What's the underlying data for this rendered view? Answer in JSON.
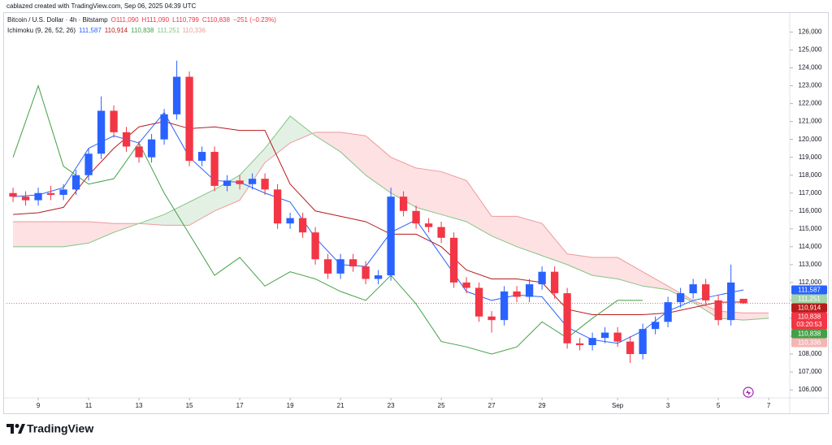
{
  "credit": "cablazed created with TradingView.com, Sep 06, 2025 04:39 UTC",
  "logo": "TradingView",
  "chart_data": {
    "type": "candlestick",
    "symbol": "Bitcoin / U.S. Dollar · 4h · Bitstamp",
    "ohlc_text": [
      "O111,090",
      "H111,090",
      "L110,799",
      "C110,838",
      "−251 (−0.23%)"
    ],
    "indicator": "Ichimoku (9, 26, 52, 26)",
    "indicator_values": [
      {
        "label": "111,587",
        "color": "#2962ff"
      },
      {
        "label": "110,914",
        "color": "#b71c1c"
      },
      {
        "label": "110,838",
        "color": "#43a047"
      },
      {
        "label": "111,251",
        "color": "#81c784"
      },
      {
        "label": "110,336",
        "color": "#ef9a9a"
      }
    ],
    "up_color": "#2962ff",
    "down_color": "#f23645",
    "x": [
      8,
      8.5,
      9,
      9.5,
      10,
      10.5,
      11,
      11.5,
      12,
      12.5,
      13,
      13.5,
      14,
      14.5,
      15,
      15.5,
      16,
      16.5,
      17,
      17.5,
      18,
      18.5,
      19,
      19.5,
      20,
      20.5,
      21,
      21.5,
      22,
      22.5,
      23,
      23.5,
      24,
      24.5,
      25,
      25.5,
      26,
      26.5,
      27,
      27.5,
      28,
      28.5,
      29,
      29.5,
      30,
      30.5,
      31,
      31.5,
      32,
      32.5,
      33,
      33.5,
      34,
      34.5,
      35,
      35.5,
      36,
      36.5,
      37
    ],
    "open": [
      117000,
      116800,
      116600,
      117000,
      116900,
      117200,
      118000,
      119200,
      121600,
      120400,
      119600,
      119000,
      120000,
      121400,
      123500,
      118800,
      119300,
      117400,
      117700,
      117500,
      117800,
      117200,
      115300,
      115600,
      114800,
      113300,
      112500,
      113300,
      112900,
      112200,
      112400,
      116800,
      116000,
      115300,
      115100,
      114500,
      112000,
      111700,
      110100,
      109900,
      111500,
      111200,
      111900,
      112600,
      111400,
      108600,
      108500,
      108900,
      109200,
      108700,
      108000,
      109400,
      109800,
      110900,
      111400,
      111900,
      111000,
      109900,
      111090
    ],
    "high": [
      117300,
      117100,
      117300,
      117400,
      117500,
      118300,
      119500,
      122400,
      121900,
      120700,
      119900,
      120300,
      121700,
      124400,
      123800,
      119600,
      119600,
      118000,
      118000,
      118100,
      118100,
      117500,
      115900,
      115900,
      115100,
      113600,
      113600,
      113600,
      113200,
      112700,
      117300,
      117100,
      116300,
      115600,
      115400,
      114800,
      112300,
      112000,
      110400,
      111800,
      111800,
      112200,
      112900,
      112900,
      111700,
      108900,
      109200,
      109500,
      109500,
      109000,
      109700,
      110100,
      111200,
      111700,
      112200,
      112200,
      111300,
      113000,
      111090
    ],
    "low": [
      116500,
      116300,
      116300,
      116600,
      116600,
      116900,
      117700,
      118900,
      120100,
      119300,
      118700,
      118700,
      119700,
      121100,
      118500,
      118500,
      117100,
      117100,
      117200,
      117200,
      116900,
      115000,
      115000,
      114500,
      113000,
      112200,
      112200,
      112600,
      111900,
      111900,
      112100,
      115700,
      115000,
      114800,
      114200,
      111700,
      111400,
      109800,
      109200,
      109600,
      110900,
      110900,
      111600,
      111100,
      108300,
      108200,
      108200,
      108600,
      108400,
      107500,
      107700,
      109100,
      109500,
      110600,
      111100,
      110700,
      109600,
      109600,
      110799
    ],
    "close": [
      116800,
      116600,
      117000,
      116900,
      117200,
      118000,
      119200,
      121600,
      120400,
      119600,
      119000,
      120000,
      121400,
      123500,
      118800,
      119300,
      117400,
      117700,
      117500,
      117800,
      117200,
      115300,
      115600,
      114800,
      113300,
      112500,
      113300,
      112900,
      112200,
      112400,
      116800,
      116000,
      115300,
      115100,
      114500,
      112000,
      111700,
      110100,
      109900,
      111500,
      111200,
      111900,
      112600,
      111400,
      108600,
      108500,
      108900,
      109200,
      108700,
      108000,
      109400,
      109800,
      110900,
      111400,
      111900,
      111000,
      109900,
      112000,
      110838
    ],
    "lines": [
      {
        "color": "#2962ff",
        "x": [
          8,
          9,
          10,
          11,
          12,
          13,
          14,
          15,
          16,
          17,
          18,
          19,
          20,
          21,
          22,
          23,
          24,
          25,
          26,
          27,
          28,
          29,
          30,
          31,
          32,
          33,
          34,
          35,
          36,
          37
        ],
        "values": [
          116800,
          116900,
          117300,
          119500,
          120200,
          119800,
          121500,
          119000,
          117700,
          117600,
          117000,
          116500,
          114500,
          113000,
          112900,
          114800,
          115500,
          113500,
          111500,
          111000,
          111300,
          111200,
          109500,
          108800,
          108600,
          109300,
          110400,
          111000,
          111300,
          111587
        ]
      },
      {
        "color": "#b71c1c",
        "x": [
          8,
          9,
          10,
          11,
          12,
          13,
          14,
          15,
          16,
          17,
          18,
          19,
          20,
          21,
          22,
          23,
          24,
          25,
          26,
          27,
          28,
          29,
          30,
          31,
          32,
          33,
          34,
          35,
          36,
          37
        ],
        "values": [
          115800,
          115900,
          116200,
          118000,
          119500,
          120700,
          121000,
          120600,
          120700,
          120500,
          120500,
          117500,
          116000,
          115700,
          115400,
          114700,
          114700,
          114000,
          112700,
          112200,
          112200,
          112000,
          110500,
          110200,
          110200,
          110200,
          110300,
          110600,
          110900,
          110914
        ]
      },
      {
        "color": "#43a047",
        "x": [
          8,
          9,
          10,
          11,
          12,
          13,
          14,
          15,
          16,
          17,
          18,
          19,
          20,
          21,
          22,
          23,
          24,
          25,
          26,
          27,
          28,
          29,
          30,
          31,
          32,
          33
        ],
        "values": [
          119000,
          123000,
          118500,
          117500,
          117800,
          119800,
          117000,
          114700,
          112400,
          113400,
          111800,
          112600,
          112200,
          111500,
          111000,
          112400,
          110800,
          108700,
          108400,
          108000,
          108400,
          109800,
          108900,
          110000,
          111000,
          111000
        ]
      }
    ],
    "cloud": {
      "x": [
        8,
        9,
        10,
        11,
        12,
        13,
        14,
        15,
        16,
        17,
        18,
        19,
        20,
        21,
        22,
        23,
        24,
        25,
        26,
        27,
        28,
        29,
        30,
        31,
        32,
        33,
        34,
        35,
        36,
        37,
        38
      ],
      "span_a": [
        114000,
        114000,
        114000,
        114200,
        114800,
        115300,
        115800,
        116500,
        117200,
        118000,
        119500,
        121300,
        120200,
        119300,
        118000,
        117000,
        116200,
        115800,
        115400,
        114600,
        114000,
        113500,
        113000,
        112400,
        112200,
        111800,
        111600,
        110900,
        110000,
        109900,
        110000
      ],
      "span_b": [
        115400,
        115400,
        115400,
        115400,
        115300,
        115300,
        115200,
        115200,
        116000,
        116600,
        118700,
        119800,
        120400,
        120400,
        120200,
        119000,
        118400,
        118200,
        117700,
        115700,
        115700,
        115300,
        113600,
        113400,
        113400,
        112600,
        111800,
        111000,
        110400,
        110300,
        110300
      ],
      "span_a_color": "#81c784",
      "span_b_color": "#ef9a9a",
      "up_fill": "rgba(67,160,71,0.15)",
      "down_fill": "rgba(242,54,69,0.15)"
    },
    "last_price": 110838,
    "last_price_color": "#f23645",
    "price_labels": [
      {
        "value": 111587,
        "label": "111,587",
        "color": "#2962ff"
      },
      {
        "value": 111251,
        "label": "111,251",
        "color": "#a5d6a7"
      },
      {
        "value": 110914,
        "label": "110,914",
        "color": "#b71c1c"
      },
      {
        "value": 110838,
        "label": "110,838",
        "color": "#f23645",
        "countdown": "03:20:53"
      },
      {
        "value": 110838,
        "label": "110,838",
        "color": "#43a047"
      },
      {
        "value": 110336,
        "label": "110,336",
        "color": "#f5b5b5"
      }
    ],
    "xlim": [
      7.74,
      38.77
    ],
    "xticks": [
      9,
      11,
      13,
      15,
      17,
      19,
      21,
      23,
      25,
      27,
      29,
      {
        "value": 32,
        "label": "Sep"
      },
      {
        "value": 34,
        "label": "3"
      },
      {
        "value": 36,
        "label": "5"
      },
      {
        "value": 38,
        "label": "7"
      }
    ],
    "ylim": [
      105640,
      127020
    ],
    "yticks": [
      {
        "value": 106000,
        "label": "106,000"
      },
      {
        "value": 107000,
        "label": "107,000"
      },
      {
        "value": 108000,
        "label": "108,000"
      },
      {
        "value": 109000,
        "label": "109,000"
      },
      {
        "value": 110000,
        "label": "110,000"
      },
      {
        "value": 111000,
        "label": "111,000"
      },
      {
        "value": 112000,
        "label": "112,000"
      },
      {
        "value": 113000,
        "label": "113,000"
      },
      {
        "value": 114000,
        "label": "114,000"
      },
      {
        "value": 115000,
        "label": "115,000"
      },
      {
        "value": 116000,
        "label": "116,000"
      },
      {
        "value": 117000,
        "label": "117,000"
      },
      {
        "value": 118000,
        "label": "118,000"
      },
      {
        "value": 119000,
        "label": "119,000"
      },
      {
        "value": 120000,
        "label": "120,000"
      },
      {
        "value": 121000,
        "label": "121,000"
      },
      {
        "value": 122000,
        "label": "122,000"
      },
      {
        "value": 123000,
        "label": "123,000"
      },
      {
        "value": 124000,
        "label": "124,000"
      },
      {
        "value": 125000,
        "label": "125,000"
      },
      {
        "value": 126000,
        "label": "126,000"
      }
    ]
  }
}
